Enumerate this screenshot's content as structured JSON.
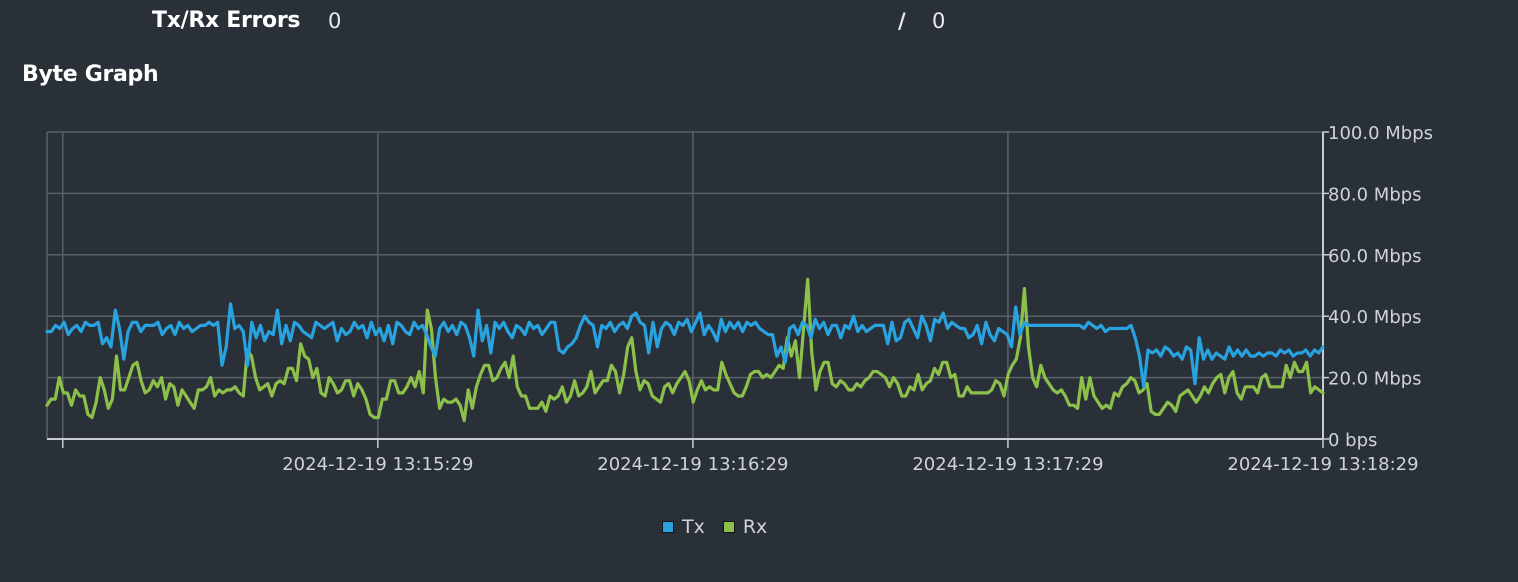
{
  "errors": {
    "label": "Tx/Rx Errors",
    "tx": "0",
    "separator": "/",
    "rx": "0"
  },
  "section_title": "Byte Graph",
  "colors": {
    "tx": "#29a3e0",
    "rx": "#8dc04b",
    "grid": "#5a6068",
    "axis": "#c8ccd0"
  },
  "chart_data": {
    "type": "line",
    "title": "",
    "xlabel": "",
    "ylabel": "",
    "ylim": [
      0,
      100
    ],
    "y_unit": "Mbps",
    "y_ticks": [
      {
        "value": 0,
        "label": "0 bps"
      },
      {
        "value": 20,
        "label": "20.0 Mbps"
      },
      {
        "value": 40,
        "label": "40.0 Mbps"
      },
      {
        "value": 60,
        "label": "60.0 Mbps"
      },
      {
        "value": 80,
        "label": "80.0 Mbps"
      },
      {
        "value": 100,
        "label": "100.0 Mbps"
      }
    ],
    "x_start": "2024-12-19 13:14:26",
    "x_end": "2024-12-19 13:18:29",
    "x_ticks": [
      {
        "time": "2024-12-19 13:14:29",
        "label": ""
      },
      {
        "time": "2024-12-19 13:15:29",
        "label": "2024-12-19 13:15:29"
      },
      {
        "time": "2024-12-19 13:16:29",
        "label": "2024-12-19 13:16:29"
      },
      {
        "time": "2024-12-19 13:17:29",
        "label": "2024-12-19 13:17:29"
      },
      {
        "time": "2024-12-19 13:18:29",
        "label": "2024-12-19 13:18:29"
      }
    ],
    "grid": true,
    "legend_position": "bottom",
    "series": [
      {
        "name": "Tx",
        "color": "#29a3e0",
        "values": [
          35,
          35,
          37,
          36,
          38,
          34,
          36,
          37,
          35,
          38,
          37,
          37,
          38,
          31,
          33,
          30,
          42,
          36,
          26,
          35,
          38,
          38,
          35,
          37,
          37,
          37,
          38,
          34,
          36,
          37,
          34,
          38,
          36,
          37,
          35,
          36,
          37,
          37,
          38,
          37,
          38,
          24,
          30,
          44,
          36,
          37,
          35,
          24,
          38,
          33,
          37,
          32,
          35,
          34,
          42,
          31,
          37,
          32,
          38,
          37,
          35,
          34,
          33,
          38,
          37,
          36,
          37,
          38,
          32,
          36,
          34,
          35,
          38,
          36,
          37,
          33,
          38,
          34,
          36,
          32,
          37,
          31,
          38,
          37,
          35,
          34,
          38,
          36,
          37,
          34,
          30,
          27,
          36,
          38,
          35,
          37,
          34,
          38,
          37,
          33,
          27,
          42,
          32,
          37,
          28,
          38,
          36,
          38,
          35,
          33,
          37,
          36,
          34,
          38,
          36,
          37,
          34,
          36,
          38,
          38,
          29,
          28,
          30,
          31,
          33,
          37,
          40,
          38,
          37,
          30,
          37,
          36,
          38,
          35,
          37,
          38,
          36,
          40,
          41,
          38,
          37,
          28,
          38,
          30,
          36,
          38,
          37,
          34,
          38,
          37,
          39,
          35,
          38,
          41,
          34,
          37,
          35,
          32,
          39,
          35,
          38,
          36,
          38,
          35,
          38,
          37,
          38,
          36,
          35,
          34,
          34,
          27,
          30,
          25,
          36,
          37,
          34,
          38,
          37,
          33,
          39,
          36,
          38,
          34,
          37,
          37,
          33,
          37,
          36,
          40,
          35,
          37,
          35,
          36,
          37,
          37,
          37,
          31,
          38,
          32,
          33,
          38,
          39,
          36,
          33,
          40,
          37,
          32,
          39,
          38,
          41,
          36,
          38,
          37,
          36,
          36,
          33,
          34,
          37,
          31,
          38,
          34,
          32,
          36,
          35,
          34,
          30,
          43,
          34,
          38,
          37,
          37,
          37,
          37,
          37,
          37,
          37,
          37,
          37,
          37,
          37,
          37,
          37,
          36,
          38,
          37,
          36,
          37,
          35,
          36,
          36,
          36,
          36,
          36,
          37,
          33,
          27,
          17,
          29,
          28,
          29,
          27,
          30,
          29,
          27,
          28,
          26,
          30,
          29,
          18,
          33,
          26,
          29,
          26,
          28,
          27,
          26,
          30,
          27,
          29,
          27,
          29,
          27,
          27,
          28,
          27,
          28,
          28,
          27,
          29,
          28,
          29,
          27,
          28,
          28,
          29,
          27,
          29,
          28,
          30
        ]
      },
      {
        "name": "Rx",
        "color": "#8dc04b",
        "values": [
          11,
          13,
          13,
          20,
          15,
          15,
          11,
          16,
          14,
          14,
          8,
          7,
          12,
          20,
          16,
          10,
          13,
          27,
          16,
          16,
          20,
          24,
          25,
          19,
          15,
          16,
          19,
          17,
          20,
          13,
          18,
          17,
          11,
          16,
          14,
          12,
          10,
          16,
          16,
          17,
          20,
          14,
          16,
          15,
          16,
          16,
          17,
          15,
          14,
          29,
          27,
          20,
          16,
          17,
          18,
          14,
          18,
          19,
          18,
          23,
          23,
          19,
          31,
          27,
          26,
          20,
          23,
          15,
          14,
          20,
          18,
          15,
          16,
          19,
          19,
          14,
          18,
          16,
          13,
          8,
          7,
          7,
          13,
          13,
          19,
          19,
          15,
          15,
          17,
          20,
          17,
          22,
          15,
          42,
          36,
          20,
          10,
          13,
          12,
          12,
          13,
          11,
          6,
          16,
          10,
          17,
          21,
          24,
          24,
          19,
          20,
          23,
          25,
          20,
          27,
          17,
          14,
          14,
          10,
          10,
          10,
          12,
          9,
          14,
          13,
          14,
          17,
          12,
          14,
          19,
          14,
          15,
          17,
          22,
          15,
          17,
          19,
          19,
          24,
          22,
          15,
          21,
          30,
          33,
          22,
          16,
          19,
          18,
          14,
          13,
          12,
          17,
          18,
          15,
          18,
          20,
          22,
          19,
          12,
          16,
          19,
          16,
          17,
          16,
          16,
          25,
          21,
          18,
          15,
          14,
          14,
          17,
          21,
          22,
          22,
          20,
          21,
          20,
          22,
          24,
          23,
          33,
          27,
          32,
          20,
          36,
          52,
          28,
          16,
          22,
          25,
          25,
          18,
          17,
          19,
          18,
          16,
          16,
          18,
          17,
          19,
          20,
          22,
          22,
          21,
          20,
          17,
          20,
          18,
          14,
          14,
          17,
          16,
          21,
          16,
          18,
          19,
          23,
          21,
          25,
          25,
          20,
          21,
          14,
          14,
          17,
          15,
          15,
          15,
          15,
          15,
          16,
          19,
          18,
          14,
          21,
          24,
          26,
          33,
          49,
          30,
          20,
          17,
          24,
          20,
          18,
          16,
          15,
          16,
          14,
          11,
          11,
          10,
          20,
          13,
          20,
          14,
          12,
          10,
          11,
          10,
          15,
          14,
          17,
          18,
          20,
          19,
          15,
          16,
          18,
          9,
          8,
          8,
          10,
          12,
          11,
          9,
          14,
          15,
          16,
          14,
          12,
          14,
          17,
          15,
          18,
          20,
          21,
          15,
          20,
          22,
          15,
          13,
          17,
          17,
          17,
          15,
          20,
          21,
          17,
          17,
          17,
          17,
          24,
          20,
          25,
          22,
          22,
          25,
          15,
          17,
          16,
          15
        ]
      }
    ]
  }
}
